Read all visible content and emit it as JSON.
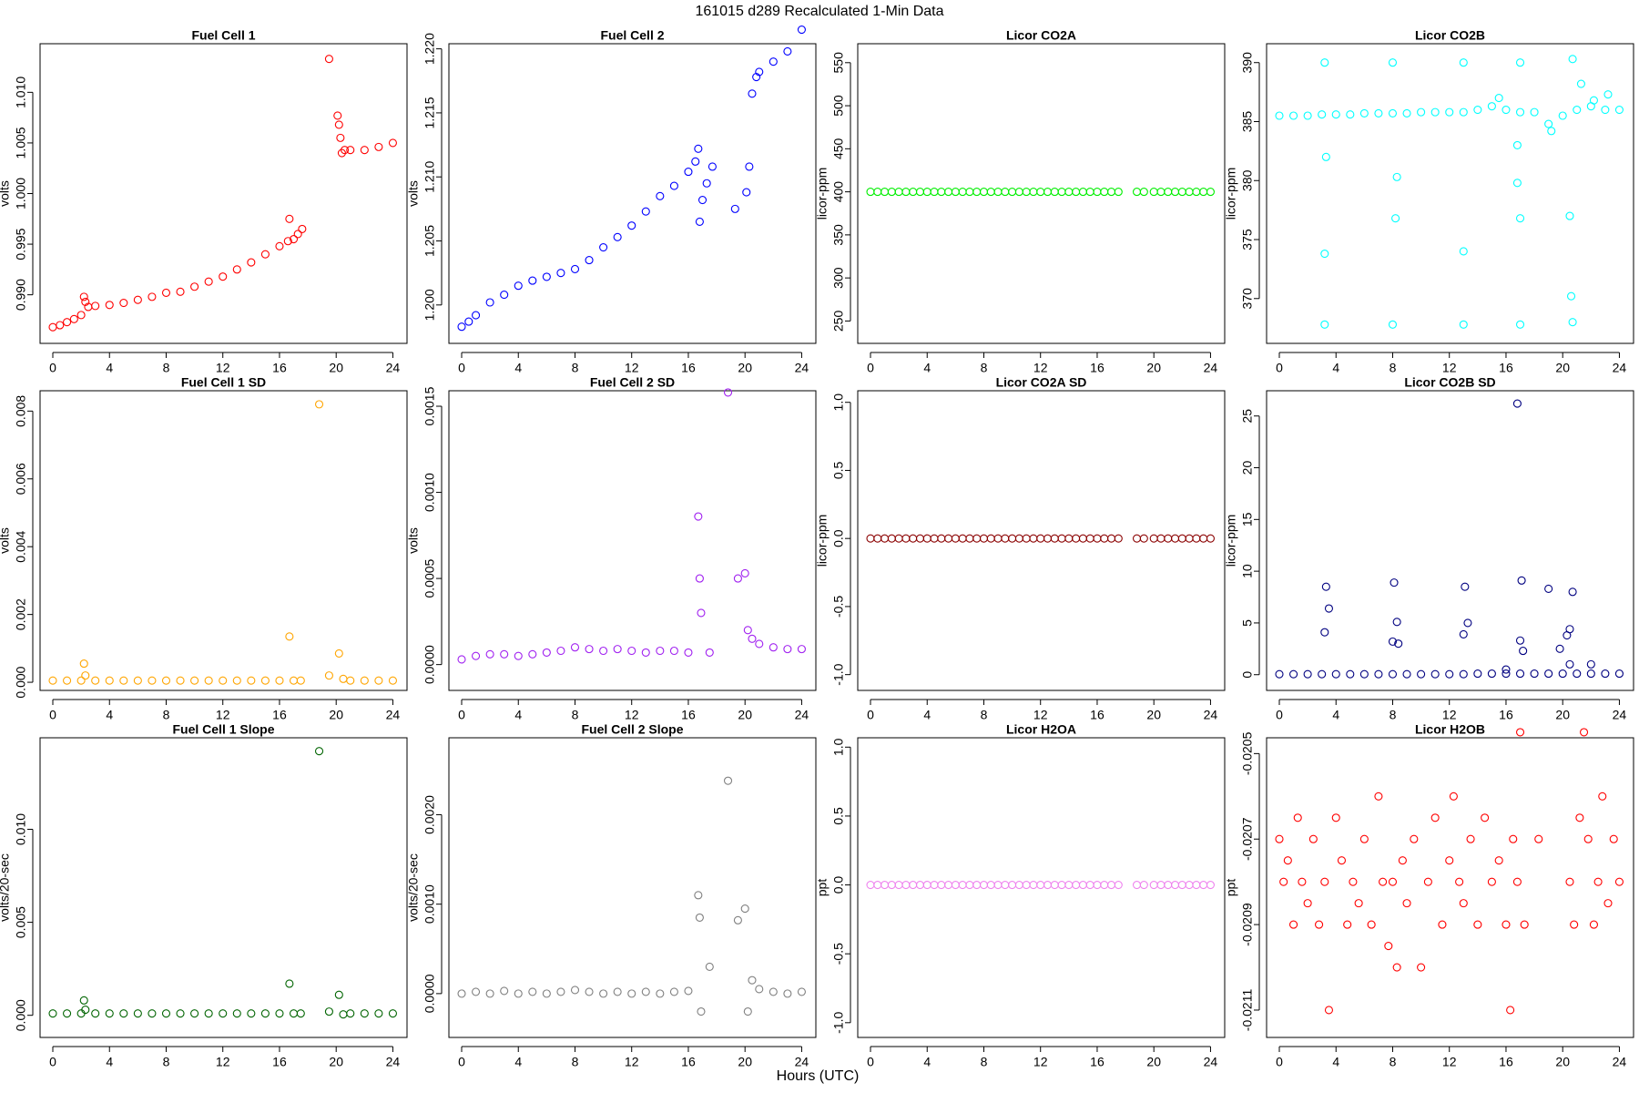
{
  "title": "161015   d289   Recalculated 1-Min Data",
  "xlabel": "Hours (UTC)",
  "chart_data": [
    {
      "type": "scatter",
      "title": "Fuel Cell 1",
      "ylabel": "volts",
      "color": "#ff0000",
      "xlim": [
        -0.9,
        25
      ],
      "xticks": [
        0,
        4,
        8,
        12,
        16,
        20,
        24
      ],
      "ylim": [
        0.9852,
        1.0148
      ],
      "yticks": [
        {
          "value": 0.99,
          "label": "0.990"
        },
        0.995,
        {
          "value": 1.0,
          "label": "1.000"
        },
        1.005,
        {
          "value": 1.01,
          "label": "1.010"
        }
      ],
      "x": [
        0,
        0.5,
        1,
        1.5,
        2,
        2.2,
        2.3,
        2.5,
        3,
        4,
        5,
        6,
        7,
        8,
        9,
        10,
        11,
        12,
        13,
        14,
        15,
        16,
        16.6,
        16.7,
        17,
        17.3,
        17.6,
        19.5,
        20.1,
        20.2,
        20.3,
        20.4,
        20.6,
        21,
        22,
        23,
        24
      ],
      "values": [
        0.9868,
        0.987,
        0.9873,
        0.9876,
        0.988,
        0.9898,
        0.9893,
        0.9888,
        0.9889,
        0.989,
        0.9892,
        0.9895,
        0.9898,
        0.9902,
        0.9903,
        0.9908,
        0.9913,
        0.9918,
        0.9925,
        0.9932,
        0.994,
        0.9948,
        0.9953,
        0.9975,
        0.9955,
        0.996,
        0.9965,
        1.0133,
        1.0077,
        1.0068,
        1.0055,
        1.004,
        1.0043,
        1.0043,
        1.0043,
        1.0046,
        1.005
      ]
    },
    {
      "type": "scatter",
      "title": "Fuel Cell 2",
      "ylabel": "volts",
      "color": "#0000ff",
      "xlim": [
        -0.9,
        25
      ],
      "xticks": [
        0,
        4,
        8,
        12,
        16,
        20,
        24
      ],
      "ylim": [
        1.197,
        1.2204
      ],
      "yticks": [
        {
          "value": 1.2,
          "label": "1.200"
        },
        1.205,
        {
          "value": 1.21,
          "label": "1.210"
        },
        1.215,
        {
          "value": 1.22,
          "label": "1.220"
        }
      ],
      "x": [
        0,
        0.5,
        1,
        2,
        3,
        4,
        5,
        6,
        7,
        8,
        9,
        10,
        11,
        12,
        13,
        14,
        15,
        16,
        16.5,
        16.7,
        16.8,
        17,
        17.3,
        17.7,
        19.3,
        20.1,
        20.3,
        20.5,
        20.8,
        21,
        22,
        23,
        24
      ],
      "values": [
        1.1983,
        1.1987,
        1.1992,
        1.2002,
        1.2008,
        1.2015,
        1.2019,
        1.2022,
        1.2025,
        1.2028,
        1.2035,
        1.2045,
        1.2053,
        1.2062,
        1.2073,
        1.2085,
        1.2093,
        1.2104,
        1.2112,
        1.2122,
        1.2065,
        1.2082,
        1.2095,
        1.2108,
        1.2075,
        1.2088,
        1.2108,
        1.2165,
        1.2178,
        1.2182,
        1.219,
        1.2198,
        1.2215
      ]
    },
    {
      "type": "scatter",
      "title": "Licor CO2A",
      "ylabel": "licor-ppm",
      "color": "#00ee00",
      "xlim": [
        -0.9,
        25
      ],
      "xticks": [
        0,
        4,
        8,
        12,
        16,
        20,
        24
      ],
      "ylim": [
        224,
        572
      ],
      "yticks": [
        250,
        300,
        350,
        400,
        450,
        500,
        550
      ],
      "x": [
        0,
        0.5,
        1,
        1.5,
        2,
        2.5,
        3,
        3.5,
        4,
        4.5,
        5,
        5.5,
        6,
        6.5,
        7,
        7.5,
        8,
        8.5,
        9,
        9.5,
        10,
        10.5,
        11,
        11.5,
        12,
        12.5,
        13,
        13.5,
        14,
        14.5,
        15,
        15.5,
        16,
        16.5,
        17,
        17.5,
        18.8,
        19.3,
        20,
        20.5,
        21,
        21.5,
        22,
        22.5,
        23,
        23.5,
        24
      ],
      "values": [
        400,
        400,
        400,
        400,
        400,
        400,
        400,
        400,
        400,
        400,
        400,
        400,
        400,
        400,
        400,
        400,
        400,
        400,
        400,
        400,
        400,
        400,
        400,
        400,
        400,
        400,
        400,
        400,
        400,
        400,
        400,
        400,
        400,
        400,
        400,
        400,
        400,
        400,
        400,
        400,
        400,
        400,
        400,
        400,
        400,
        400,
        400
      ]
    },
    {
      "type": "scatter",
      "title": "Licor CO2B",
      "ylabel": "licor-ppm",
      "color": "#00ffff",
      "xlim": [
        -0.9,
        25
      ],
      "xticks": [
        0,
        4,
        8,
        12,
        16,
        20,
        24
      ],
      "ylim": [
        366.2,
        391.6
      ],
      "yticks": [
        370,
        375,
        380,
        385,
        390
      ],
      "x": [
        0,
        1,
        2,
        3,
        4,
        5,
        6,
        7,
        8,
        9,
        10,
        11,
        12,
        13,
        14,
        15,
        16,
        17,
        18,
        19,
        20,
        21,
        22,
        23,
        24,
        3.2,
        3.2,
        3.2,
        3.3,
        8,
        8,
        8.2,
        8.3,
        13,
        13,
        13,
        17,
        17,
        16.8,
        16.8,
        17,
        20.7,
        20.7,
        20.5,
        20.6,
        21.3,
        22.2,
        15.5,
        19.2,
        23.2
      ],
      "values": [
        385.5,
        385.5,
        385.5,
        385.6,
        385.6,
        385.6,
        385.7,
        385.7,
        385.7,
        385.7,
        385.8,
        385.8,
        385.8,
        385.8,
        386,
        386.3,
        386,
        385.8,
        385.8,
        384.8,
        385.5,
        386,
        386.3,
        386,
        386,
        390,
        367.8,
        373.8,
        382,
        390,
        367.8,
        376.8,
        380.3,
        390,
        374,
        367.8,
        390,
        367.8,
        383,
        379.8,
        376.8,
        390.3,
        368,
        377,
        370.2,
        388.2,
        386.8,
        387,
        384.2,
        387.3
      ]
    },
    {
      "type": "scatter",
      "title": "Fuel Cell 1 SD",
      "ylabel": "volts",
      "color": "#ffa500",
      "xlim": [
        -0.9,
        25
      ],
      "xticks": [
        0,
        4,
        8,
        12,
        16,
        20,
        24
      ],
      "ylim": [
        -0.00024,
        0.0086
      ],
      "yticks": [
        {
          "value": 0,
          "label": "0.000"
        },
        0.002,
        0.004,
        0.006,
        0.008
      ],
      "x": [
        0,
        1,
        2,
        2.2,
        2.3,
        3,
        4,
        5,
        6,
        7,
        8,
        9,
        10,
        11,
        12,
        13,
        14,
        15,
        16,
        16.7,
        17,
        17.5,
        18.8,
        19.5,
        20.2,
        20.5,
        21,
        22,
        23,
        24
      ],
      "values": [
        5e-05,
        5e-05,
        5e-05,
        0.00055,
        0.0002,
        5e-05,
        5e-05,
        5e-05,
        5e-05,
        5e-05,
        5e-05,
        5e-05,
        5e-05,
        5e-05,
        5e-05,
        5e-05,
        5e-05,
        5e-05,
        5e-05,
        0.00135,
        5e-05,
        5e-05,
        0.0082,
        0.0002,
        0.00085,
        0.0001,
        5e-05,
        5e-05,
        5e-05,
        5e-05
      ]
    },
    {
      "type": "scatter",
      "title": "Fuel Cell 2 SD",
      "ylabel": "volts",
      "color": "#a020f0",
      "xlim": [
        -0.9,
        25
      ],
      "xticks": [
        0,
        4,
        8,
        12,
        16,
        20,
        24
      ],
      "ylim": [
        -0.00015,
        0.00159
      ],
      "yticks": [
        {
          "value": 0,
          "label": "0.0000"
        },
        0.0005,
        {
          "value": 0.001,
          "label": "0.0010"
        },
        0.0015
      ],
      "x": [
        0,
        1,
        2,
        3,
        4,
        5,
        6,
        7,
        8,
        9,
        10,
        11,
        12,
        13,
        14,
        15,
        16,
        16.7,
        16.8,
        16.9,
        17.5,
        18.8,
        19.5,
        20,
        20.2,
        20.5,
        21,
        22,
        23,
        24
      ],
      "values": [
        3e-05,
        5e-05,
        6e-05,
        6e-05,
        5e-05,
        6e-05,
        7e-05,
        8e-05,
        0.0001,
        9e-05,
        8e-05,
        9e-05,
        8e-05,
        7e-05,
        8e-05,
        8e-05,
        7e-05,
        0.00086,
        0.0005,
        0.0003,
        7e-05,
        0.00158,
        0.0005,
        0.00053,
        0.0002,
        0.00015,
        0.00012,
        0.0001,
        9e-05,
        9e-05
      ]
    },
    {
      "type": "scatter",
      "title": "Licor CO2A SD",
      "ylabel": "licor-ppm",
      "color": "#8b0000",
      "xlim": [
        -0.9,
        25
      ],
      "xticks": [
        0,
        4,
        8,
        12,
        16,
        20,
        24
      ],
      "ylim": [
        -1.116,
        1.085
      ],
      "yticks": [
        {
          "value": -1,
          "label": "-1.0"
        },
        -0.5,
        {
          "value": 0,
          "label": "0.0"
        },
        0.5,
        {
          "value": 1,
          "label": "1.0"
        }
      ],
      "x": [
        0,
        0.5,
        1,
        1.5,
        2,
        2.5,
        3,
        3.5,
        4,
        4.5,
        5,
        5.5,
        6,
        6.5,
        7,
        7.5,
        8,
        8.5,
        9,
        9.5,
        10,
        10.5,
        11,
        11.5,
        12,
        12.5,
        13,
        13.5,
        14,
        14.5,
        15,
        15.5,
        16,
        16.5,
        17,
        17.5,
        18.8,
        19.3,
        20,
        20.5,
        21,
        21.5,
        22,
        22.5,
        23,
        23.5,
        24
      ],
      "values": [
        0,
        0,
        0,
        0,
        0,
        0,
        0,
        0,
        0,
        0,
        0,
        0,
        0,
        0,
        0,
        0,
        0,
        0,
        0,
        0,
        0,
        0,
        0,
        0,
        0,
        0,
        0,
        0,
        0,
        0,
        0,
        0,
        0,
        0,
        0,
        0,
        0,
        0,
        0,
        0,
        0,
        0,
        0,
        0,
        0,
        0,
        0
      ]
    },
    {
      "type": "scatter",
      "title": "Licor CO2B SD",
      "ylabel": "licor-ppm",
      "color": "#000080",
      "xlim": [
        -0.9,
        25
      ],
      "xticks": [
        0,
        4,
        8,
        12,
        16,
        20,
        24
      ],
      "ylim": [
        -1.52,
        27.44
      ],
      "yticks": [
        0,
        5,
        10,
        15,
        20,
        25
      ],
      "x": [
        0,
        1,
        2,
        3,
        4,
        5,
        6,
        7,
        8,
        9,
        10,
        11,
        12,
        13,
        14,
        15,
        16,
        17,
        18,
        19,
        20,
        21,
        22,
        23,
        24,
        3.2,
        3.3,
        3.5,
        8,
        8.1,
        8.3,
        8.4,
        13,
        13.1,
        13.3,
        16.8,
        17,
        17.1,
        17.2,
        19,
        19.8,
        20.3,
        20.5,
        20.7,
        20.5,
        22,
        16
      ],
      "values": [
        0.05,
        0.05,
        0.05,
        0.05,
        0.05,
        0.05,
        0.05,
        0.05,
        0.05,
        0.05,
        0.05,
        0.05,
        0.05,
        0.05,
        0.1,
        0.1,
        0.1,
        0.1,
        0.1,
        0.1,
        0.1,
        0.1,
        0.1,
        0.1,
        0.1,
        4.1,
        8.5,
        6.4,
        3.2,
        8.9,
        5.1,
        3,
        3.9,
        8.5,
        5,
        26.2,
        3.3,
        9.1,
        2.3,
        8.3,
        2.5,
        3.8,
        4.4,
        8,
        1,
        1,
        0.5
      ]
    },
    {
      "type": "scatter",
      "title": "Fuel Cell 1 Slope",
      "ylabel": "volts/20-sec",
      "color": "#006400",
      "xlim": [
        -0.9,
        25
      ],
      "xticks": [
        0,
        4,
        8,
        12,
        16,
        20,
        24
      ],
      "ylim": [
        -0.00119,
        0.01492
      ],
      "yticks": [
        {
          "value": 0,
          "label": "0.000"
        },
        0.005,
        {
          "value": 0.01,
          "label": "0.010"
        }
      ],
      "x": [
        0,
        1,
        2,
        2.2,
        2.3,
        3,
        4,
        5,
        6,
        7,
        8,
        9,
        10,
        11,
        12,
        13,
        14,
        15,
        16,
        16.7,
        17,
        17.5,
        18.8,
        19.5,
        20.2,
        20.5,
        21,
        22,
        23,
        24
      ],
      "values": [
        0.0001,
        0.0001,
        0.0001,
        0.0008,
        0.0003,
        0.0001,
        0.0001,
        0.0001,
        0.0001,
        0.0001,
        0.0001,
        0.0001,
        0.0001,
        0.0001,
        0.0001,
        0.0001,
        0.0001,
        0.0001,
        0.0001,
        0.0017,
        0.0001,
        0.0001,
        0.0142,
        0.0002,
        0.0011,
        5e-05,
        0.0001,
        0.0001,
        0.0001,
        0.0001
      ]
    },
    {
      "type": "scatter",
      "title": "Fuel Cell 2 Slope",
      "ylabel": "volts/20-sec",
      "color": "#808080",
      "xlim": [
        -0.9,
        25
      ],
      "xticks": [
        0,
        4,
        8,
        12,
        16,
        20,
        24
      ],
      "ylim": [
        -0.00049,
        0.00286
      ],
      "yticks": [
        {
          "value": 0,
          "label": "0.0000"
        },
        {
          "value": 0.001,
          "label": "0.0010"
        },
        {
          "value": 0.002,
          "label": "0.0020"
        }
      ],
      "x": [
        0,
        1,
        2,
        3,
        4,
        5,
        6,
        7,
        8,
        9,
        10,
        11,
        12,
        13,
        14,
        15,
        16,
        16.7,
        16.8,
        16.9,
        17.5,
        18.8,
        19.5,
        20,
        20.2,
        20.5,
        21,
        22,
        23,
        24
      ],
      "values": [
        0,
        2e-05,
        0,
        3e-05,
        0,
        2e-05,
        0,
        2e-05,
        4e-05,
        2e-05,
        0,
        2e-05,
        0,
        2e-05,
        0,
        2e-05,
        3e-05,
        0.0011,
        0.00085,
        -0.0002,
        0.0003,
        0.00238,
        0.00082,
        0.00095,
        -0.0002,
        0.00015,
        5e-05,
        2e-05,
        0,
        2e-05
      ]
    },
    {
      "type": "scatter",
      "title": "Licor H2OA",
      "ylabel": "ppt",
      "color": "#ee82ee",
      "xlim": [
        -0.9,
        25
      ],
      "xticks": [
        0,
        4,
        8,
        12,
        16,
        20,
        24
      ],
      "ylim": [
        -1.107,
        1.068
      ],
      "yticks": [
        {
          "value": -1,
          "label": "-1.0"
        },
        -0.5,
        {
          "value": 0,
          "label": "0.0"
        },
        0.5,
        {
          "value": 1,
          "label": "1.0"
        }
      ],
      "x": [
        0,
        0.5,
        1,
        1.5,
        2,
        2.5,
        3,
        3.5,
        4,
        4.5,
        5,
        5.5,
        6,
        6.5,
        7,
        7.5,
        8,
        8.5,
        9,
        9.5,
        10,
        10.5,
        11,
        11.5,
        12,
        12.5,
        13,
        13.5,
        14,
        14.5,
        15,
        15.5,
        16,
        16.5,
        17,
        17.5,
        18.8,
        19.3,
        20,
        20.5,
        21,
        21.5,
        22,
        22.5,
        23,
        23.5,
        24
      ],
      "values": [
        0,
        0,
        0,
        0,
        0,
        0,
        0,
        0,
        0,
        0,
        0,
        0,
        0,
        0,
        0,
        0,
        0,
        0,
        0,
        0,
        0,
        0,
        0,
        0,
        0,
        0,
        0,
        0,
        0,
        0,
        0,
        0,
        0,
        0,
        0,
        0,
        0,
        0,
        0,
        0,
        0,
        0,
        0,
        0,
        0,
        0,
        0
      ]
    },
    {
      "type": "scatter",
      "title": "Licor H2OB",
      "ylabel": "ppt",
      "color": "#ff0000",
      "xlim": [
        -0.9,
        25
      ],
      "xticks": [
        0,
        4,
        8,
        12,
        16,
        20,
        24
      ],
      "ylim": [
        -0.021164,
        -0.020463
      ],
      "yticks": [
        -0.0211,
        -0.0209,
        -0.0207,
        -0.0205
      ],
      "x": [
        0,
        0.3,
        0.6,
        1,
        1.3,
        1.6,
        2,
        2.4,
        2.8,
        3.2,
        3.5,
        4,
        4.4,
        4.8,
        5.2,
        5.6,
        6,
        6.5,
        7,
        7.3,
        7.7,
        8,
        8.3,
        8.7,
        9,
        9.5,
        10,
        10.5,
        11,
        11.5,
        12,
        12.3,
        12.7,
        13,
        13.5,
        14,
        14.5,
        15,
        15.5,
        16,
        16.3,
        16.5,
        16.8,
        17,
        17.3,
        18.3,
        20.5,
        20.8,
        21.2,
        21.5,
        21.8,
        22.2,
        22.5,
        22.8,
        23.2,
        23.6,
        24
      ],
      "values": [
        -0.0207,
        -0.0208,
        -0.02075,
        -0.0209,
        -0.02065,
        -0.0208,
        -0.02085,
        -0.0207,
        -0.0209,
        -0.0208,
        -0.0211,
        -0.02065,
        -0.02075,
        -0.0209,
        -0.0208,
        -0.02085,
        -0.0207,
        -0.0209,
        -0.0206,
        -0.0208,
        -0.02095,
        -0.0208,
        -0.021,
        -0.02075,
        -0.02085,
        -0.0207,
        -0.021,
        -0.0208,
        -0.02065,
        -0.0209,
        -0.02075,
        -0.0206,
        -0.0208,
        -0.02085,
        -0.0207,
        -0.0209,
        -0.02065,
        -0.0208,
        -0.02075,
        -0.0209,
        -0.0211,
        -0.0207,
        -0.0208,
        -0.02045,
        -0.0209,
        -0.0207,
        -0.0208,
        -0.0209,
        -0.02065,
        -0.02045,
        -0.0207,
        -0.0209,
        -0.0208,
        -0.0206,
        -0.02085,
        -0.0207,
        -0.0208
      ]
    }
  ]
}
